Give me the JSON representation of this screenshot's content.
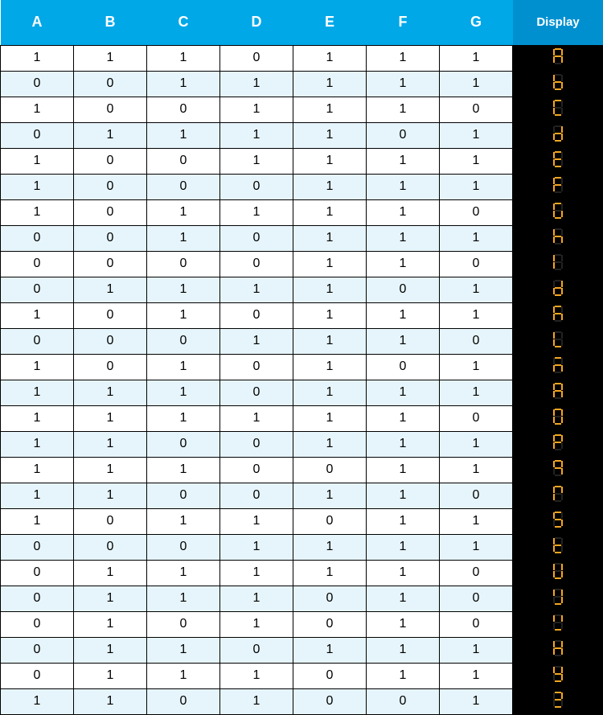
{
  "colors": {
    "header_bg": "#00a8e8",
    "header_fg": "#ffffff",
    "display_header_bg": "#0090d0",
    "row_alt_bg": "#e6f5fb",
    "segment_on": "#f5a623",
    "segment_off": "#222222",
    "segment_bg": "#000000"
  },
  "table": {
    "type": "table",
    "columns": [
      "A",
      "B",
      "C",
      "D",
      "E",
      "F",
      "G",
      "Display"
    ],
    "rows": [
      [
        1,
        1,
        1,
        0,
        1,
        1,
        1
      ],
      [
        0,
        0,
        1,
        1,
        1,
        1,
        1
      ],
      [
        1,
        0,
        0,
        1,
        1,
        1,
        0
      ],
      [
        0,
        1,
        1,
        1,
        1,
        0,
        1
      ],
      [
        1,
        0,
        0,
        1,
        1,
        1,
        1
      ],
      [
        1,
        0,
        0,
        0,
        1,
        1,
        1
      ],
      [
        1,
        0,
        1,
        1,
        1,
        1,
        0
      ],
      [
        0,
        0,
        1,
        0,
        1,
        1,
        1
      ],
      [
        0,
        0,
        0,
        0,
        1,
        1,
        0
      ],
      [
        0,
        1,
        1,
        1,
        1,
        0,
        1
      ],
      [
        1,
        0,
        1,
        0,
        1,
        1,
        1
      ],
      [
        0,
        0,
        0,
        1,
        1,
        1,
        0
      ],
      [
        1,
        0,
        1,
        0,
        1,
        0,
        1
      ],
      [
        1,
        1,
        1,
        0,
        1,
        1,
        1
      ],
      [
        1,
        1,
        1,
        1,
        1,
        1,
        0
      ],
      [
        1,
        1,
        0,
        0,
        1,
        1,
        1
      ],
      [
        1,
        1,
        1,
        0,
        0,
        1,
        1
      ],
      [
        1,
        1,
        0,
        0,
        1,
        1,
        0
      ],
      [
        1,
        0,
        1,
        1,
        0,
        1,
        1
      ],
      [
        0,
        0,
        0,
        1,
        1,
        1,
        1
      ],
      [
        0,
        1,
        1,
        1,
        1,
        1,
        0
      ],
      [
        0,
        1,
        1,
        1,
        0,
        1,
        0
      ],
      [
        0,
        1,
        0,
        1,
        0,
        1,
        0
      ],
      [
        0,
        1,
        1,
        0,
        1,
        1,
        1
      ],
      [
        0,
        1,
        1,
        1,
        0,
        1,
        1
      ],
      [
        1,
        1,
        0,
        1,
        0,
        0,
        1
      ]
    ]
  }
}
